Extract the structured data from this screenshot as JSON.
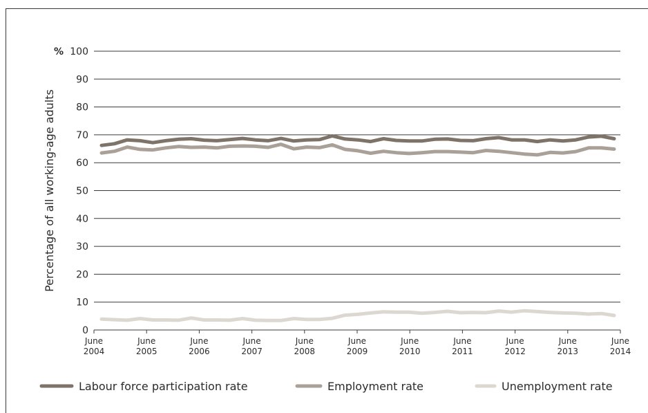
{
  "chart_data": {
    "type": "line",
    "ylabel": "Percentage of all working-age adults",
    "y_unit": "%",
    "ylim": [
      0,
      100
    ],
    "y_ticks": [
      0,
      10,
      20,
      30,
      40,
      50,
      60,
      70,
      80,
      90,
      100
    ],
    "x_ticks": [
      {
        "line1": "June",
        "line2": "2004"
      },
      {
        "line1": "June",
        "line2": "2005"
      },
      {
        "line1": "June",
        "line2": "2006"
      },
      {
        "line1": "June",
        "line2": "2007"
      },
      {
        "line1": "June",
        "line2": "2008"
      },
      {
        "line1": "June",
        "line2": "2009"
      },
      {
        "line1": "June",
        "line2": "2010"
      },
      {
        "line1": "June",
        "line2": "2011"
      },
      {
        "line1": "June",
        "line2": "2012"
      },
      {
        "line1": "June",
        "line2": "2013"
      },
      {
        "line1": "June",
        "line2": "2014"
      }
    ],
    "x_start": "2004-06",
    "x_end": "2014-06",
    "legend_position": "bottom",
    "grid": true,
    "series": [
      {
        "name": "Labour force participation rate",
        "color": "#7d7369",
        "values": [
          66.2,
          66.8,
          68.2,
          67.9,
          67.2,
          67.9,
          68.4,
          68.6,
          68.1,
          67.9,
          68.3,
          68.7,
          68.2,
          67.9,
          68.7,
          67.8,
          68.2,
          68.3,
          69.6,
          68.5,
          68.2,
          67.6,
          68.6,
          68.0,
          67.8,
          67.8,
          68.4,
          68.5,
          68.0,
          67.9,
          68.6,
          69.0,
          68.2,
          68.2,
          67.6,
          68.2,
          67.8,
          68.2,
          69.2,
          69.5,
          68.6
        ]
      },
      {
        "name": "Employment rate",
        "color": "#a9a197",
        "values": [
          63.5,
          64.1,
          65.6,
          64.8,
          64.6,
          65.3,
          65.8,
          65.5,
          65.6,
          65.3,
          65.9,
          66.0,
          65.9,
          65.5,
          66.6,
          65.0,
          65.6,
          65.4,
          66.4,
          64.8,
          64.3,
          63.4,
          64.1,
          63.6,
          63.3,
          63.6,
          64.0,
          64.0,
          63.8,
          63.6,
          64.4,
          64.1,
          63.6,
          63.1,
          62.8,
          63.7,
          63.5,
          64.0,
          65.3,
          65.3,
          64.9
        ]
      },
      {
        "name": "Unemployment rate",
        "color": "#dcd8d1",
        "values": [
          3.9,
          3.7,
          3.5,
          4.1,
          3.6,
          3.6,
          3.5,
          4.3,
          3.6,
          3.6,
          3.5,
          4.1,
          3.5,
          3.4,
          3.4,
          4.1,
          3.8,
          3.8,
          4.2,
          5.3,
          5.6,
          6.1,
          6.5,
          6.4,
          6.4,
          6.0,
          6.3,
          6.7,
          6.2,
          6.3,
          6.2,
          6.8,
          6.4,
          6.9,
          6.6,
          6.3,
          6.1,
          6.0,
          5.7,
          5.9,
          5.2
        ]
      }
    ]
  }
}
